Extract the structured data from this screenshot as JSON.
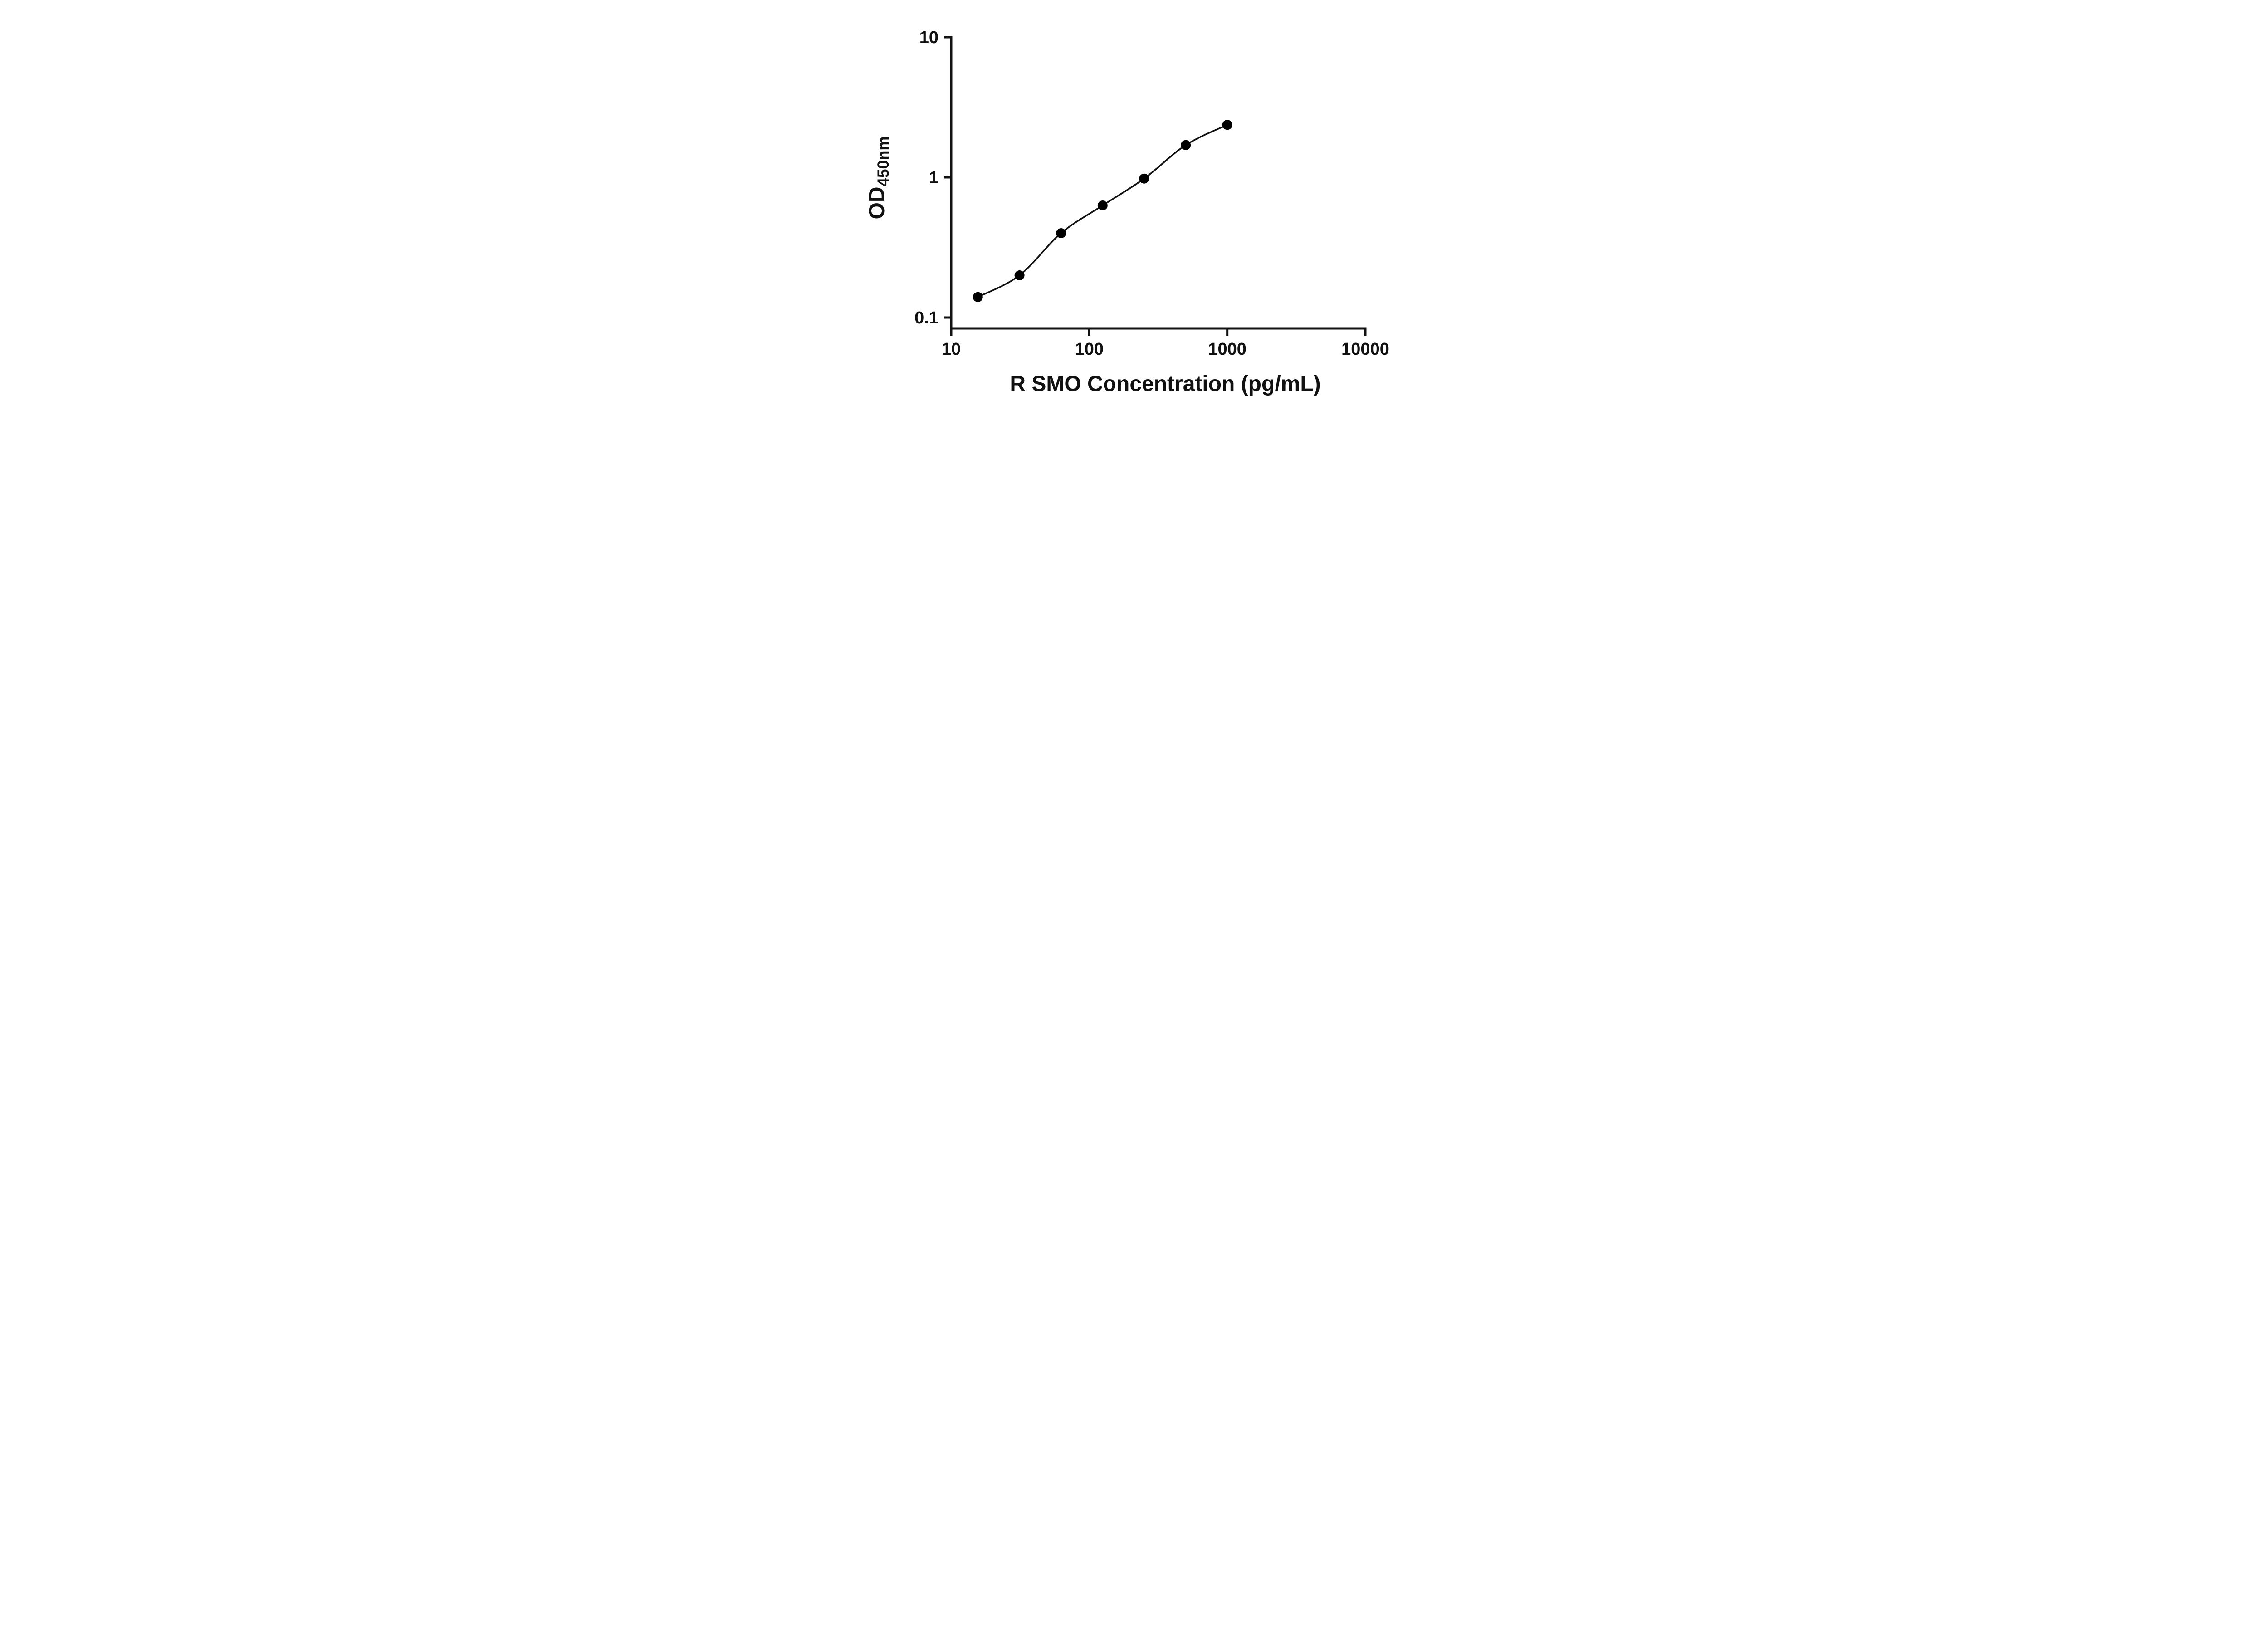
{
  "chart_data": {
    "type": "scatter",
    "subtype": "log-log standard curve with fitted line",
    "title": "",
    "xlabel": "R SMO Concentration (pg/mL)",
    "ylabel_main": "OD",
    "ylabel_sub": "450nm",
    "x_scale": "log10",
    "y_scale": "log10",
    "xlim": [
      10,
      10000
    ],
    "ylim": [
      0.1,
      10
    ],
    "x_ticks": [
      10,
      100,
      1000,
      10000
    ],
    "x_tick_labels": [
      "10",
      "100",
      "1000",
      "10000"
    ],
    "y_ticks": [
      0.1,
      1,
      10
    ],
    "y_tick_labels": [
      "0.1",
      "1",
      "10"
    ],
    "grid": false,
    "legend": "none",
    "points": [
      {
        "x": 15.6,
        "y": 0.14
      },
      {
        "x": 31.25,
        "y": 0.2
      },
      {
        "x": 62.5,
        "y": 0.4
      },
      {
        "x": 125,
        "y": 0.63
      },
      {
        "x": 250,
        "y": 0.98
      },
      {
        "x": 500,
        "y": 1.7
      },
      {
        "x": 1000,
        "y": 2.37
      }
    ],
    "marker_color": "#000000",
    "line_color": "#111111",
    "axis_color": "#111111",
    "background": "#ffffff"
  }
}
